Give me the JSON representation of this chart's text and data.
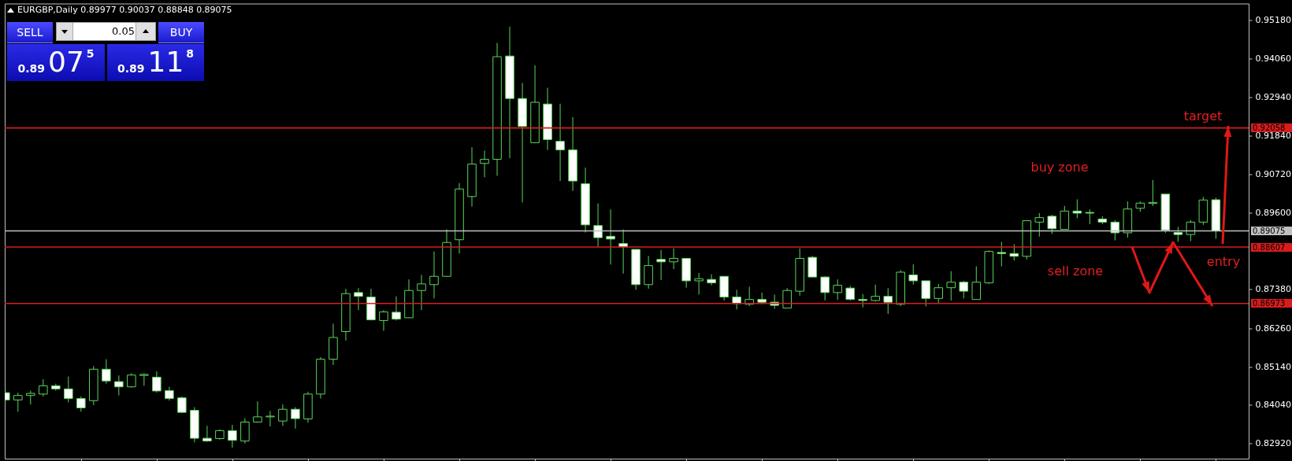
{
  "chart_data": {
    "type": "candlestick",
    "title": "EURGBP,Daily 0.89977 0.90037 0.88848 0.89075",
    "annotations": [
      "target",
      "buy zone",
      "sell zone",
      "entry",
      "SELL",
      "0.05",
      "BUY",
      "0.89",
      "07$^{5}$",
      "0.89",
      "11$^{8}$"
    ],
    "categories": [
      null,
      null,
      null,
      null,
      null,
      null,
      null,
      null,
      null,
      null,
      null,
      null,
      null,
      null,
      null,
      null,
      null,
      null,
      null,
      null,
      null,
      null,
      null,
      null,
      null,
      null,
      null,
      null,
      null,
      null,
      null,
      null,
      null,
      null,
      null,
      null,
      null,
      null,
      null,
      null,
      null,
      null,
      null,
      null,
      null,
      null,
      null,
      null,
      null,
      null,
      null,
      null,
      null,
      null,
      null,
      null,
      null,
      null,
      null,
      null,
      null,
      null,
      null,
      null,
      null,
      null,
      null,
      null,
      null,
      null,
      null,
      null,
      null,
      null,
      null,
      null,
      null,
      null,
      null,
      null,
      null,
      null,
      null,
      null,
      null,
      null,
      null,
      null,
      null,
      null,
      null,
      null,
      null,
      null,
      null,
      null,
      null
    ],
    "ohlc": [
      [
        0.8439,
        0.8448,
        0.8414,
        0.8418
      ],
      [
        0.8418,
        0.8439,
        0.8384,
        0.8431
      ],
      [
        0.8431,
        0.8445,
        0.8405,
        0.8437
      ],
      [
        0.8435,
        0.8478,
        0.8428,
        0.8459
      ],
      [
        0.8459,
        0.8465,
        0.8445,
        0.845
      ],
      [
        0.845,
        0.8486,
        0.8411,
        0.8422
      ],
      [
        0.8422,
        0.8428,
        0.8384,
        0.8395
      ],
      [
        0.8416,
        0.8516,
        0.8403,
        0.8507
      ],
      [
        0.8507,
        0.8536,
        0.8465,
        0.8473
      ],
      [
        0.8471,
        0.8489,
        0.8431,
        0.8456
      ],
      [
        0.8456,
        0.8496,
        0.8454,
        0.849
      ],
      [
        0.8489,
        0.8495,
        0.8459,
        0.8492
      ],
      [
        0.8484,
        0.8501,
        0.8439,
        0.8444
      ],
      [
        0.8445,
        0.8456,
        0.8416,
        0.8422
      ],
      [
        0.8424,
        0.8428,
        0.838,
        0.8382
      ],
      [
        0.8388,
        0.8397,
        0.8295,
        0.8307
      ],
      [
        0.8307,
        0.8343,
        0.8297,
        0.8299
      ],
      [
        0.8306,
        0.8333,
        0.8303,
        0.8329
      ],
      [
        0.8329,
        0.8346,
        0.828,
        0.8301
      ],
      [
        0.8299,
        0.8365,
        0.8292,
        0.8354
      ],
      [
        0.8354,
        0.8414,
        0.8352,
        0.8369
      ],
      [
        0.8369,
        0.8386,
        0.8341,
        0.8371
      ],
      [
        0.8357,
        0.8405,
        0.8343,
        0.8391
      ],
      [
        0.8391,
        0.8397,
        0.8335,
        0.8364
      ],
      [
        0.8363,
        0.8442,
        0.8352,
        0.8435
      ],
      [
        0.8435,
        0.8542,
        0.8422,
        0.8536
      ],
      [
        0.8536,
        0.8639,
        0.8519,
        0.8599
      ],
      [
        0.8616,
        0.874,
        0.859,
        0.8726
      ],
      [
        0.8729,
        0.8742,
        0.8678,
        0.8718
      ],
      [
        0.8716,
        0.874,
        0.8648,
        0.865
      ],
      [
        0.8648,
        0.8678,
        0.8618,
        0.8673
      ],
      [
        0.8672,
        0.8718,
        0.8648,
        0.8652
      ],
      [
        0.8656,
        0.8767,
        0.8655,
        0.8735
      ],
      [
        0.8735,
        0.878,
        0.8678,
        0.8754
      ],
      [
        0.8752,
        0.8848,
        0.8712,
        0.8776
      ],
      [
        0.8776,
        0.8912,
        0.8776,
        0.8874
      ],
      [
        0.8882,
        0.9046,
        0.8842,
        0.9029
      ],
      [
        0.9007,
        0.915,
        0.8978,
        0.9101
      ],
      [
        0.9103,
        0.914,
        0.9063,
        0.9115
      ],
      [
        0.9115,
        0.9452,
        0.9067,
        0.9412
      ],
      [
        0.9414,
        0.9499,
        0.9118,
        0.9291
      ],
      [
        0.9291,
        0.9336,
        0.899,
        0.921
      ],
      [
        0.9163,
        0.9387,
        0.9163,
        0.928
      ],
      [
        0.9275,
        0.9322,
        0.9142,
        0.9172
      ],
      [
        0.9167,
        0.9276,
        0.9052,
        0.9142
      ],
      [
        0.9142,
        0.9237,
        0.9023,
        0.9052
      ],
      [
        0.9044,
        0.9091,
        0.8903,
        0.8925
      ],
      [
        0.8923,
        0.8987,
        0.8862,
        0.8888
      ],
      [
        0.8892,
        0.897,
        0.881,
        0.8884
      ],
      [
        0.8871,
        0.8912,
        0.8784,
        0.8861
      ],
      [
        0.8854,
        0.8854,
        0.8737,
        0.8752
      ],
      [
        0.8752,
        0.8835,
        0.874,
        0.8807
      ],
      [
        0.8825,
        0.8852,
        0.8765,
        0.8818
      ],
      [
        0.8818,
        0.8857,
        0.8797,
        0.8828
      ],
      [
        0.8828,
        0.8828,
        0.8743,
        0.8763
      ],
      [
        0.8763,
        0.8786,
        0.8723,
        0.8769
      ],
      [
        0.8767,
        0.8782,
        0.875,
        0.8757
      ],
      [
        0.8776,
        0.8776,
        0.8706,
        0.8716
      ],
      [
        0.8716,
        0.8737,
        0.868,
        0.8697
      ],
      [
        0.8695,
        0.8746,
        0.869,
        0.8709
      ],
      [
        0.8709,
        0.8729,
        0.8695,
        0.8701
      ],
      [
        0.8701,
        0.8723,
        0.8682,
        0.8692
      ],
      [
        0.8684,
        0.8742,
        0.8684,
        0.8735
      ],
      [
        0.8733,
        0.8857,
        0.872,
        0.8828
      ],
      [
        0.8831,
        0.8835,
        0.8774,
        0.8774
      ],
      [
        0.8774,
        0.8776,
        0.8706,
        0.8729
      ],
      [
        0.8729,
        0.8767,
        0.8708,
        0.875
      ],
      [
        0.8742,
        0.8748,
        0.8706,
        0.8709
      ],
      [
        0.8709,
        0.8725,
        0.8686,
        0.8706
      ],
      [
        0.8706,
        0.8752,
        0.8703,
        0.8718
      ],
      [
        0.8718,
        0.8742,
        0.8667,
        0.8701
      ],
      [
        0.8695,
        0.8794,
        0.869,
        0.8788
      ],
      [
        0.878,
        0.8811,
        0.8752,
        0.8763
      ],
      [
        0.8763,
        0.8763,
        0.8689,
        0.8712
      ],
      [
        0.8712,
        0.8754,
        0.8699,
        0.8743
      ],
      [
        0.8743,
        0.8791,
        0.8706,
        0.8759
      ],
      [
        0.8759,
        0.8763,
        0.8712,
        0.8733
      ],
      [
        0.8709,
        0.8805,
        0.8709,
        0.8759
      ],
      [
        0.8757,
        0.8851,
        0.8754,
        0.8848
      ],
      [
        0.8845,
        0.8876,
        0.8805,
        0.8842
      ],
      [
        0.8842,
        0.8869,
        0.8822,
        0.8834
      ],
      [
        0.8834,
        0.8937,
        0.8825,
        0.8937
      ],
      [
        0.8933,
        0.8959,
        0.8891,
        0.8946
      ],
      [
        0.895,
        0.8954,
        0.8899,
        0.8914
      ],
      [
        0.8912,
        0.898,
        0.8912,
        0.8965
      ],
      [
        0.8965,
        0.8999,
        0.8944,
        0.8959
      ],
      [
        0.8961,
        0.897,
        0.8927,
        0.8959
      ],
      [
        0.8942,
        0.895,
        0.8927,
        0.8933
      ],
      [
        0.8933,
        0.8939,
        0.888,
        0.8902
      ],
      [
        0.8902,
        0.8993,
        0.8888,
        0.8971
      ],
      [
        0.8973,
        0.8993,
        0.8963,
        0.8988
      ],
      [
        0.8987,
        0.9055,
        0.898,
        0.899
      ],
      [
        0.9014,
        0.9014,
        0.8902,
        0.891
      ],
      [
        0.8903,
        0.8919,
        0.8876,
        0.8897
      ],
      [
        0.8897,
        0.8939,
        0.8878,
        0.8933
      ],
      [
        0.8933,
        0.9006,
        0.8925,
        0.8997
      ],
      [
        0.89977,
        0.90037,
        0.88848,
        0.89075
      ]
    ],
    "color": "#5ad65a",
    "ylim": [
      0.8248,
      0.9566
    ],
    "yticks": [
      {
        "value": 0.9518,
        "label": "0.95180"
      },
      {
        "value": 0.9406,
        "label": "0.94060"
      },
      {
        "value": 0.9294,
        "label": "0.92940"
      },
      {
        "value": 0.9184,
        "label": "0.91840"
      },
      {
        "value": 0.9072,
        "label": "0.90720"
      },
      {
        "value": 0.896,
        "label": "0.89600"
      },
      {
        "value": 0.8738,
        "label": "0.87380"
      },
      {
        "value": 0.8626,
        "label": "0.86260"
      },
      {
        "value": 0.8514,
        "label": "0.85140"
      },
      {
        "value": 0.8404,
        "label": "0.84040"
      },
      {
        "value": 0.8292,
        "label": "0.82920"
      }
    ],
    "ref_lines": [
      {
        "axis": "y",
        "value": 0.92058,
        "label": "0.92058",
        "color": "#d81c1c"
      },
      {
        "axis": "y",
        "value": 0.88607,
        "label": "0.88607",
        "color": "#d81c1c"
      },
      {
        "axis": "y",
        "value": 0.86973,
        "label": "0.86973",
        "color": "#d81c1c"
      },
      {
        "axis": "y",
        "value": 0.89075,
        "label": "0.89075",
        "color": "#c0c0c0"
      }
    ],
    "tick_labels": "y"
  }
}
